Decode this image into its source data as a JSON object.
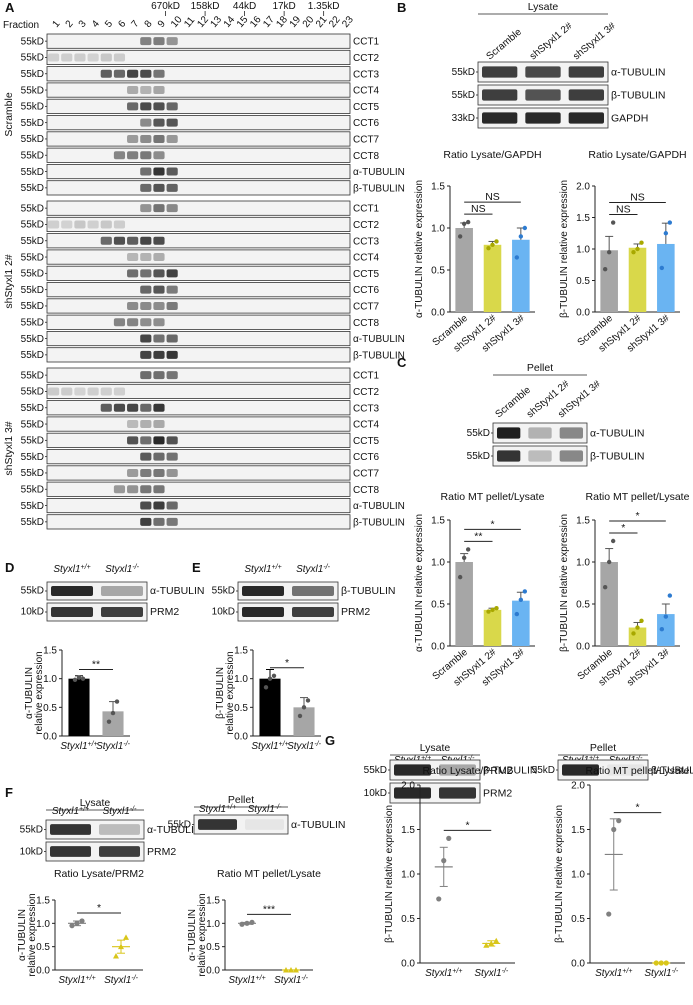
{
  "panel_letters": [
    "A",
    "B",
    "C",
    "D",
    "E",
    "F",
    "G"
  ],
  "panel_a": {
    "fraction_label": "Fraction",
    "fractions": [
      "1",
      "2",
      "3",
      "4",
      "5",
      "6",
      "7",
      "8",
      "9",
      "10",
      "11",
      "12",
      "13",
      "14",
      "15",
      "16",
      "17",
      "18",
      "19",
      "20",
      "21",
      "22",
      "23"
    ],
    "mw_markers": [
      {
        "label": "670kD",
        "fraction": 9.5
      },
      {
        "label": "158kD",
        "fraction": 12.5
      },
      {
        "label": "44kD",
        "fraction": 15.5
      },
      {
        "label": "17kD",
        "fraction": 18.5
      },
      {
        "label": "1.35kD",
        "fraction": 21.5
      }
    ],
    "kd_label": "55kD",
    "groups": [
      "Scramble",
      "shStyxl1 2#",
      "shStyxl1 3#"
    ],
    "proteins": [
      "CCT1",
      "CCT2",
      "CCT3",
      "CCT4",
      "CCT5",
      "CCT6",
      "CCT7",
      "CCT8",
      "α-TUBULIN",
      "β-TUBULIN"
    ]
  },
  "panel_b": {
    "title": "Lysate",
    "lanes": [
      "Scramble",
      "shStyxl1 2#",
      "shStyxl1 3#"
    ],
    "bands": [
      {
        "kd": "55kD",
        "label": "α-TUBULIN"
      },
      {
        "kd": "55kD",
        "label": "β-TUBULIN"
      },
      {
        "kd": "33kD",
        "label": "GAPDH"
      }
    ]
  },
  "panel_c": {
    "title": "Pellet",
    "lanes": [
      "Scramble",
      "shStyxl1 2#",
      "shStyxl1 3#"
    ],
    "bands": [
      {
        "kd": "55kD",
        "label": "α-TUBULIN"
      },
      {
        "kd": "55kD",
        "label": "β-TUBULIN"
      }
    ]
  },
  "panel_d": {
    "lanes": [
      "Styxl1+/+",
      "Styxl1-/-"
    ],
    "bands": [
      {
        "kd": "55kD",
        "label": "α-TUBULIN"
      },
      {
        "kd": "10kD",
        "label": "PRM2"
      }
    ]
  },
  "panel_e": {
    "lanes": [
      "Styxl1+/+",
      "Styxl1-/-"
    ],
    "bands": [
      {
        "kd": "55kD",
        "label": "β-TUBULIN"
      },
      {
        "kd": "10kD",
        "label": "PRM2"
      }
    ]
  },
  "panel_f": {
    "lysate_title": "Lysate",
    "pellet_title": "Pellet",
    "lanes": [
      "Styxl1+/+",
      "Styxl1-/-"
    ],
    "lysate_bands": [
      {
        "kd": "55kD",
        "label": "α-TUBULIN"
      },
      {
        "kd": "10kD",
        "label": "PRM2"
      }
    ],
    "pellet_bands": [
      {
        "kd": "55kD",
        "label": "α-TUBULIN"
      }
    ]
  },
  "panel_g": {
    "lysate_title": "Lysate",
    "pellet_title": "Pellet",
    "lanes": [
      "Styxl1+/+",
      "Styxl1-/-"
    ],
    "lysate_bands": [
      {
        "kd": "55kD",
        "label": "β-TUBULIN"
      },
      {
        "kd": "10kD",
        "label": "PRM2"
      }
    ],
    "pellet_bands": [
      {
        "kd": "55kD",
        "label": "β-TUBULIN"
      }
    ]
  },
  "chart_data": [
    {
      "id": "B1",
      "type": "bar",
      "title": "Ratio Lysate/GAPDH",
      "ylabel": "α-TUBULIN relative expression",
      "categories": [
        "Scramble",
        "shStyxl1 2#",
        "shStyxl1 3#"
      ],
      "values": [
        1.0,
        0.8,
        0.86
      ],
      "errors": [
        0.06,
        0.04,
        0.14
      ],
      "points": [
        [
          0.9,
          1.05,
          1.07
        ],
        [
          0.76,
          0.8,
          0.84
        ],
        [
          0.65,
          0.9,
          1.0
        ]
      ],
      "colors": [
        "#a6a6a6",
        "#d9d84a",
        "#6ab4f2"
      ],
      "ylim": [
        0,
        1.5
      ],
      "yticks": [
        "0.0",
        "0.5",
        "1.0",
        "1.5"
      ],
      "sig": [
        {
          "a": 0,
          "b": 2,
          "text": "NS"
        },
        {
          "a": 0,
          "b": 1,
          "text": "NS"
        }
      ]
    },
    {
      "id": "B2",
      "type": "bar",
      "title": "Ratio Lysate/GAPDH",
      "ylabel": "β-TUBULIN relative expression",
      "categories": [
        "Scramble",
        "shStyxl1 2#",
        "shStyxl1 3#"
      ],
      "values": [
        0.98,
        1.02,
        1.08
      ],
      "errors": [
        0.22,
        0.06,
        0.33
      ],
      "points": [
        [
          0.68,
          0.95,
          1.42
        ],
        [
          0.95,
          1.0,
          1.1
        ],
        [
          0.7,
          1.25,
          1.42
        ]
      ],
      "colors": [
        "#a6a6a6",
        "#d9d84a",
        "#6ab4f2"
      ],
      "ylim": [
        0,
        2.0
      ],
      "yticks": [
        "0.0",
        "0.5",
        "1.0",
        "1.5",
        "2.0"
      ],
      "sig": [
        {
          "a": 0,
          "b": 2,
          "text": "NS"
        },
        {
          "a": 0,
          "b": 1,
          "text": "NS"
        }
      ]
    },
    {
      "id": "C1",
      "type": "bar",
      "title": "Ratio MT pellet/Lysate",
      "ylabel": "α-TUBULIN relative expression",
      "categories": [
        "Scramble",
        "shStyxl1 2#",
        "shStyxl1 3#"
      ],
      "values": [
        1.0,
        0.43,
        0.54
      ],
      "errors": [
        0.1,
        0.02,
        0.1
      ],
      "points": [
        [
          0.82,
          1.05,
          1.15
        ],
        [
          0.41,
          0.43,
          0.45
        ],
        [
          0.38,
          0.55,
          0.65
        ]
      ],
      "colors": [
        "#a6a6a6",
        "#d9d84a",
        "#6ab4f2"
      ],
      "ylim": [
        0,
        1.5
      ],
      "yticks": [
        "0.0",
        "0.5",
        "1.0",
        "1.5"
      ],
      "sig": [
        {
          "a": 0,
          "b": 2,
          "text": "*"
        },
        {
          "a": 0,
          "b": 1,
          "text": "**"
        }
      ]
    },
    {
      "id": "C2",
      "type": "bar",
      "title": "Ratio MT pellet/Lysate",
      "ylabel": "β-TUBULIN relative expression",
      "categories": [
        "Scramble",
        "shStyxl1 2#",
        "shStyxl1 3#"
      ],
      "values": [
        1.0,
        0.22,
        0.38
      ],
      "errors": [
        0.16,
        0.06,
        0.12
      ],
      "points": [
        [
          0.7,
          1.0,
          1.25
        ],
        [
          0.15,
          0.22,
          0.3
        ],
        [
          0.2,
          0.35,
          0.6
        ]
      ],
      "colors": [
        "#a6a6a6",
        "#d9d84a",
        "#6ab4f2"
      ],
      "ylim": [
        0,
        1.5
      ],
      "yticks": [
        "0.0",
        "0.5",
        "1.0",
        "1.5"
      ],
      "sig": [
        {
          "a": 0,
          "b": 2,
          "text": "*"
        },
        {
          "a": 0,
          "b": 1,
          "text": "*"
        }
      ]
    },
    {
      "id": "D",
      "type": "bar",
      "title": "",
      "ylabel": "α-TUBULIN relative expression",
      "categories": [
        "Styxl1+/+",
        "Styxl1-/-"
      ],
      "values": [
        1.0,
        0.43
      ],
      "errors": [
        0.05,
        0.17
      ],
      "points": [
        [
          0.98,
          1.02,
          1.0
        ],
        [
          0.25,
          0.4,
          0.6
        ]
      ],
      "colors": [
        "#000000",
        "#a6a6a6"
      ],
      "ylim": [
        0,
        1.5
      ],
      "yticks": [
        "0.0",
        "0.5",
        "1.0",
        "1.5"
      ],
      "sig": [
        {
          "a": 0,
          "b": 1,
          "text": "**"
        }
      ]
    },
    {
      "id": "E",
      "type": "bar",
      "title": "",
      "ylabel": "β-TUBULIN relative expression",
      "categories": [
        "Styxl1+/+",
        "Styxl1-/-"
      ],
      "values": [
        1.0,
        0.5
      ],
      "errors": [
        0.16,
        0.17
      ],
      "points": [
        [
          0.85,
          1.0,
          1.05
        ],
        [
          0.35,
          0.5,
          0.62
        ]
      ],
      "colors": [
        "#000000",
        "#a6a6a6"
      ],
      "ylim": [
        0,
        1.5
      ],
      "yticks": [
        "0.0",
        "0.5",
        "1.0",
        "1.5"
      ],
      "sig": [
        {
          "a": 0,
          "b": 1,
          "text": "*"
        }
      ]
    },
    {
      "id": "F1",
      "type": "scatter",
      "title": "Ratio Lysate/PRM2",
      "ylabel": "α-TUBULIN relative expression",
      "categories": [
        "Styxl1+/+",
        "Styxl1-/-"
      ],
      "means": [
        1.0,
        0.5
      ],
      "errors": [
        0.05,
        0.14
      ],
      "points": [
        [
          0.95,
          1.0,
          1.05
        ],
        [
          0.3,
          0.5,
          0.7
        ]
      ],
      "colors": [
        "#808080",
        "#d9c61a"
      ],
      "markers": [
        "circle",
        "triangle"
      ],
      "ylim": [
        0,
        1.5
      ],
      "yticks": [
        "0.0",
        "0.5",
        "1.0",
        "1.5"
      ],
      "sig": [
        {
          "a": 0,
          "b": 1,
          "text": "*"
        }
      ]
    },
    {
      "id": "F2",
      "type": "scatter",
      "title": "Ratio MT pellet/Lysate",
      "ylabel": "α-TUBULIN relative expression",
      "categories": [
        "Styxl1+/+",
        "Styxl1-/-"
      ],
      "means": [
        1.0,
        0.0
      ],
      "errors": [
        0.02,
        0.0
      ],
      "points": [
        [
          0.98,
          1.0,
          1.02
        ],
        [
          0,
          0,
          0
        ]
      ],
      "colors": [
        "#808080",
        "#d9c61a"
      ],
      "markers": [
        "circle",
        "triangle"
      ],
      "ylim": [
        0,
        1.5
      ],
      "yticks": [
        "0.0",
        "0.5",
        "1.0",
        "1.5"
      ],
      "sig": [
        {
          "a": 0,
          "b": 1,
          "text": "***"
        }
      ]
    },
    {
      "id": "G1",
      "type": "scatter",
      "title": "Ratio Lysate/PRM2",
      "ylabel": "β-TUBULIN relative expression",
      "categories": [
        "Styxl1+/+",
        "Styxl1-/-"
      ],
      "means": [
        1.08,
        0.22
      ],
      "errors": [
        0.22,
        0.03
      ],
      "points": [
        [
          0.72,
          1.15,
          1.4
        ],
        [
          0.2,
          0.22,
          0.25
        ]
      ],
      "colors": [
        "#808080",
        "#d9c61a"
      ],
      "markers": [
        "circle",
        "triangle"
      ],
      "ylim": [
        0,
        2.0
      ],
      "yticks": [
        "0.0",
        "0.5",
        "1.0",
        "1.5",
        "2.0"
      ],
      "sig": [
        {
          "a": 0,
          "b": 1,
          "text": "*"
        }
      ]
    },
    {
      "id": "G2",
      "type": "scatter",
      "title": "Ratio MT pellet/Lysate",
      "ylabel": "β-TUBULIN relative expression",
      "categories": [
        "Styxl1+/+",
        "Styxl1-/-"
      ],
      "means": [
        1.22,
        0.0
      ],
      "errors": [
        0.4,
        0.0
      ],
      "points": [
        [
          0.55,
          1.5,
          1.6
        ],
        [
          0,
          0,
          0
        ]
      ],
      "colors": [
        "#808080",
        "#d9c61a"
      ],
      "markers": [
        "circle",
        "circle"
      ],
      "ylim": [
        0,
        2.0
      ],
      "yticks": [
        "0.0",
        "0.5",
        "1.0",
        "1.5",
        "2.0"
      ],
      "sig": [
        {
          "a": 0,
          "b": 1,
          "text": "*"
        }
      ]
    }
  ]
}
